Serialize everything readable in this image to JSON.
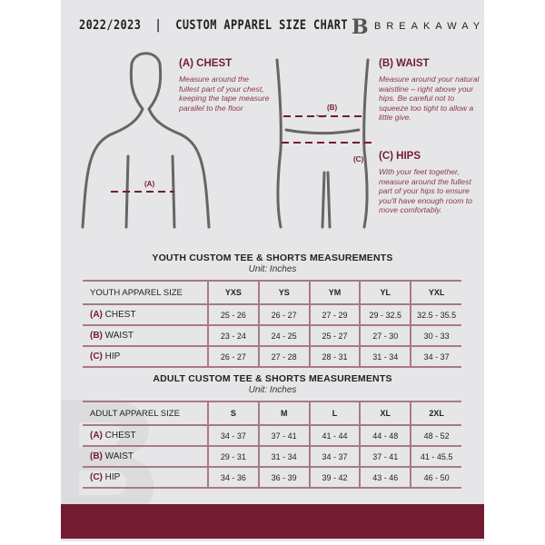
{
  "header": {
    "title": "2022/2023  |  CUSTOM APPAREL SIZE CHART",
    "brand": "BREAKAWAY",
    "logo_letter": "B"
  },
  "guide": {
    "chest": {
      "title": "(A) CHEST",
      "text": "Measure around the fullest part of your chest, keeping the tape measure parallel to the floor",
      "marker": "(A)"
    },
    "waist": {
      "title": "(B) WAIST",
      "text": "Measure around your natural waistline – right above your hips. Be careful not to squeeze too tight to allow a little give.",
      "marker": "(B)"
    },
    "hips": {
      "title": "(C) HIPS",
      "text": "With your feet together, measure around the fullest part of your hips to ensure you'll have enough room to move comfortably.",
      "marker": "(C)"
    }
  },
  "youth": {
    "title": "YOUTH CUSTOM TEE & SHORTS MEASUREMENTS",
    "unit": "Unit: Inches",
    "header": [
      "YOUTH APPAREL SIZE",
      "YXS",
      "YS",
      "YM",
      "YL",
      "YXL"
    ],
    "rows": [
      {
        "code": "(A)",
        "name": "CHEST",
        "values": [
          "25 - 26",
          "26 - 27",
          "27 - 29",
          "29 - 32.5",
          "32.5 - 35.5"
        ]
      },
      {
        "code": "(B)",
        "name": "WAIST",
        "values": [
          "23 - 24",
          "24 - 25",
          "25 - 27",
          "27 - 30",
          "30 - 33"
        ]
      },
      {
        "code": "(C)",
        "name": "HIP",
        "values": [
          "26 - 27",
          "27 - 28",
          "28 - 31",
          "31 - 34",
          "34 - 37"
        ]
      }
    ]
  },
  "adult": {
    "title": "ADULT CUSTOM TEE & SHORTS MEASUREMENTS",
    "unit": "Unit: Inches",
    "header": [
      "ADULT APPAREL SIZE",
      "S",
      "M",
      "L",
      "XL",
      "2XL"
    ],
    "rows": [
      {
        "code": "(A)",
        "name": "CHEST",
        "values": [
          "34 - 37",
          "37 - 41",
          "41 - 44",
          "44 - 48",
          "48 - 52"
        ]
      },
      {
        "code": "(B)",
        "name": "WAIST",
        "values": [
          "29 - 31",
          "31 - 34",
          "34 - 37",
          "37 - 41",
          "41 - 45.5"
        ]
      },
      {
        "code": "(C)",
        "name": "HIP",
        "values": [
          "34 - 36",
          "36 - 39",
          "39 - 42",
          "43 - 46",
          "46 - 50"
        ]
      }
    ]
  },
  "colors": {
    "accent": "#731c31",
    "panel": "#e6e6e8"
  }
}
